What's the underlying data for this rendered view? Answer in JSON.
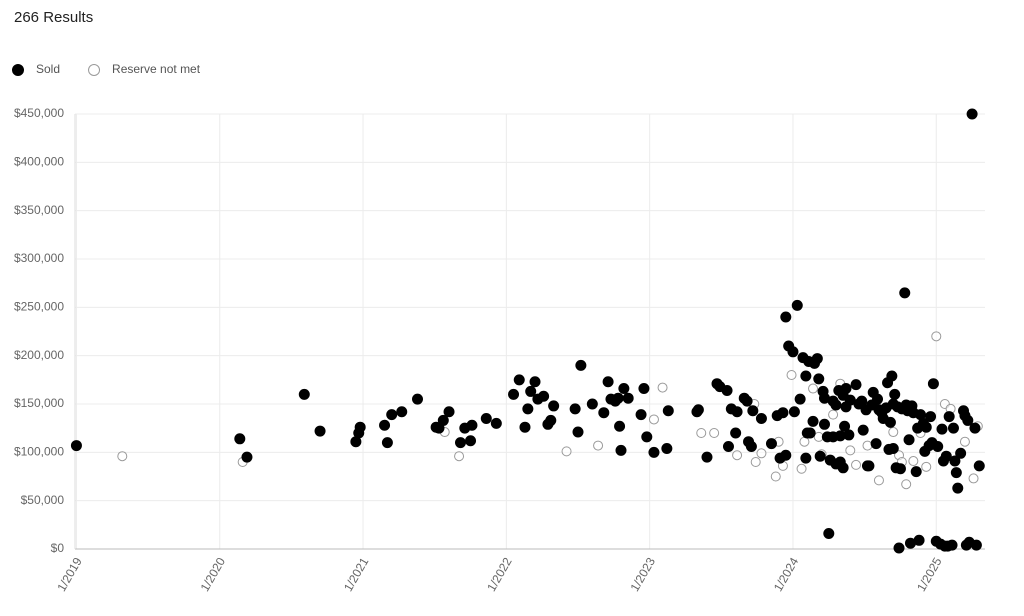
{
  "chart_data": {
    "type": "scatter",
    "title": "266 Results",
    "xlim": [
      2018.99,
      2025.34
    ],
    "xticks": [
      {
        "value": 2019,
        "label": "1/2019"
      },
      {
        "value": 2020,
        "label": "1/2020"
      },
      {
        "value": 2021,
        "label": "1/2021"
      },
      {
        "value": 2022,
        "label": "1/2022"
      },
      {
        "value": 2023,
        "label": "1/2023"
      },
      {
        "value": 2024,
        "label": "1/2024"
      },
      {
        "value": 2025,
        "label": "1/2025"
      }
    ],
    "ylim": [
      0,
      450000
    ],
    "yticks": [
      {
        "value": 0,
        "label": "$0"
      },
      {
        "value": 50000,
        "label": "$50,000"
      },
      {
        "value": 100000,
        "label": "$100,000"
      },
      {
        "value": 150000,
        "label": "$150,000"
      },
      {
        "value": 200000,
        "label": "$200,000"
      },
      {
        "value": 250000,
        "label": "$250,000"
      },
      {
        "value": 300000,
        "label": "$300,000"
      },
      {
        "value": 350000,
        "label": "$350,000"
      },
      {
        "value": 400000,
        "label": "$400,000"
      },
      {
        "value": 450000,
        "label": "$450,000"
      }
    ],
    "grid": true,
    "series": [
      {
        "name": "Sold",
        "color": "#000000",
        "filled": true,
        "x": [
          2019.0,
          2020.14,
          2020.19,
          2020.59,
          2020.7,
          2020.95,
          2020.97,
          2020.98,
          2021.15,
          2021.17,
          2021.2,
          2021.27,
          2021.38,
          2021.51,
          2021.53,
          2021.56,
          2021.6,
          2021.68,
          2021.71,
          2021.75,
          2021.76,
          2021.86,
          2021.93,
          2022.05,
          2022.09,
          2022.13,
          2022.15,
          2022.17,
          2022.2,
          2022.22,
          2022.26,
          2022.29,
          2022.31,
          2022.33,
          2022.48,
          2022.5,
          2022.52,
          2022.6,
          2022.68,
          2022.71,
          2022.73,
          2022.76,
          2022.78,
          2022.79,
          2022.8,
          2022.82,
          2022.85,
          2022.94,
          2022.96,
          2022.98,
          2023.03,
          2023.12,
          2023.13,
          2023.33,
          2023.34,
          2023.4,
          2023.47,
          2023.49,
          2023.54,
          2023.55,
          2023.57,
          2023.6,
          2023.61,
          2023.66,
          2023.68,
          2023.69,
          2023.71,
          2023.72,
          2023.78,
          2023.85,
          2023.89,
          2023.91,
          2023.93,
          2023.95,
          2023.95,
          2023.97,
          2024.0,
          2024.01,
          2024.03,
          2024.05,
          2024.07,
          2024.09,
          2024.1,
          2024.11,
          2024.09,
          2024.12,
          2024.14,
          2024.15,
          2024.17,
          2024.18,
          2024.19,
          2024.21,
          2024.22,
          2024.22,
          2024.24,
          2024.25,
          2024.26,
          2024.28,
          2024.28,
          2024.3,
          2024.3,
          2024.32,
          2024.33,
          2024.33,
          2024.35,
          2024.35,
          2024.36,
          2024.37,
          2024.37,
          2024.39,
          2024.4,
          2024.44,
          2024.46,
          2024.48,
          2024.49,
          2024.51,
          2024.52,
          2024.53,
          2024.55,
          2024.56,
          2024.58,
          2024.59,
          2024.6,
          2024.62,
          2024.63,
          2024.65,
          2024.66,
          2024.67,
          2024.68,
          2024.69,
          2024.7,
          2024.7,
          2024.71,
          2024.72,
          2024.73,
          2024.74,
          2024.75,
          2024.76,
          2024.78,
          2024.79,
          2024.8,
          2024.81,
          2024.82,
          2024.83,
          2024.84,
          2024.86,
          2024.87,
          2024.88,
          2024.89,
          2024.91,
          2024.92,
          2024.93,
          2024.95,
          2024.96,
          2024.97,
          2024.98,
          2025.0,
          2025.01,
          2025.03,
          2025.04,
          2025.05,
          2025.06,
          2025.07,
          2025.08,
          2025.09,
          2025.11,
          2025.12,
          2025.13,
          2025.14,
          2025.15,
          2025.17,
          2025.19,
          2025.2,
          2025.21,
          2025.22,
          2025.23,
          2025.25,
          2025.27,
          2025.28,
          2025.3
        ],
        "values": [
          107000,
          114000,
          95000,
          160000,
          122000,
          111000,
          120000,
          126000,
          128000,
          110000,
          139000,
          142000,
          155000,
          126000,
          125000,
          133000,
          142000,
          110000,
          125000,
          112000,
          128000,
          135000,
          130000,
          160000,
          175000,
          126000,
          145000,
          163000,
          173000,
          155000,
          158000,
          129000,
          133000,
          148000,
          145000,
          121000,
          190000,
          150000,
          141000,
          173000,
          155000,
          153000,
          156000,
          127000,
          102000,
          166000,
          156000,
          139000,
          166000,
          116000,
          100000,
          104000,
          143000,
          142000,
          144000,
          95000,
          171000,
          168000,
          164000,
          106000,
          145000,
          120000,
          142000,
          156000,
          153000,
          111000,
          106000,
          143000,
          135000,
          109000,
          138000,
          94000,
          141000,
          240000,
          97000,
          210000,
          204000,
          142000,
          252000,
          155000,
          198000,
          179000,
          120000,
          194000,
          94000,
          120000,
          132000,
          192000,
          197000,
          176000,
          96000,
          163000,
          129000,
          156000,
          116000,
          16000,
          92000,
          153000,
          116000,
          88000,
          149000,
          164000,
          90000,
          117000,
          159000,
          84000,
          127000,
          166000,
          147000,
          118000,
          154000,
          170000,
          150000,
          153000,
          123000,
          144000,
          86000,
          86000,
          149000,
          162000,
          109000,
          155000,
          144000,
          141000,
          135000,
          146000,
          172000,
          103000,
          131000,
          179000,
          150000,
          104000,
          160000,
          84000,
          147000,
          1000,
          83000,
          145000,
          265000,
          149000,
          143000,
          113000,
          6000,
          148000,
          141000,
          80000,
          125000,
          9000,
          139000,
          130000,
          101000,
          126000,
          107000,
          137000,
          110000,
          171000,
          8000,
          106000,
          5000,
          124000,
          91000,
          3000,
          96000,
          3000,
          137000,
          4000,
          125000,
          91000,
          79000,
          63000,
          99000,
          143000,
          138000,
          4000,
          133000,
          7000,
          450000,
          125000,
          4000,
          86000
        ]
      },
      {
        "name": "Reserve not met",
        "color": "#9a9a9a",
        "filled": false,
        "x": [
          2019.32,
          2020.16,
          2021.57,
          2021.67,
          2022.42,
          2022.64,
          2023.03,
          2023.09,
          2023.36,
          2023.45,
          2023.61,
          2023.73,
          2023.74,
          2023.78,
          2023.88,
          2023.9,
          2023.93,
          2023.99,
          2024.06,
          2024.08,
          2024.14,
          2024.18,
          2024.2,
          2024.28,
          2024.33,
          2024.4,
          2024.44,
          2024.52,
          2024.6,
          2024.7,
          2024.74,
          2024.76,
          2024.79,
          2024.84,
          2024.89,
          2024.93,
          2025.0,
          2025.06,
          2025.1,
          2025.2,
          2025.26,
          2025.29
        ],
        "values": [
          96000,
          90000,
          121000,
          96000,
          101000,
          107000,
          134000,
          167000,
          120000,
          120000,
          97000,
          150000,
          90000,
          99000,
          75000,
          111000,
          86000,
          180000,
          83000,
          111000,
          166000,
          116000,
          98000,
          139000,
          171000,
          102000,
          87000,
          107000,
          71000,
          121000,
          97000,
          90000,
          67000,
          91000,
          120000,
          85000,
          220000,
          150000,
          145000,
          111000,
          73000,
          127000
        ]
      }
    ]
  }
}
